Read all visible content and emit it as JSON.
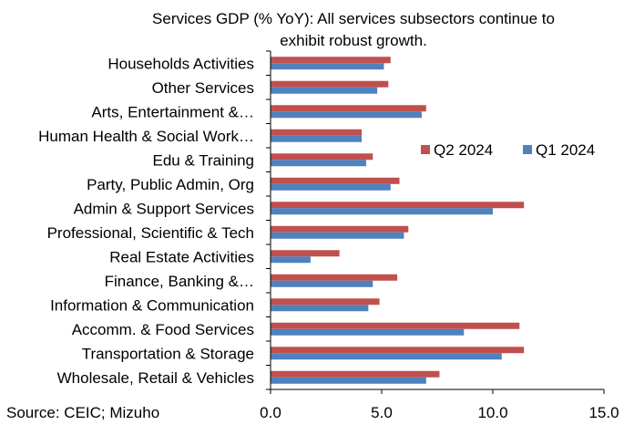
{
  "colors": {
    "q2": "#C0504D",
    "q1": "#4F81BD",
    "axis": "#000000"
  },
  "source": "Source: CEIC; Mizuho",
  "chart_data": {
    "type": "bar",
    "orientation": "horizontal",
    "title_lines": [
      "Services GDP (% YoY): All services subsectors continue to",
      "exhibit robust growth."
    ],
    "categories": [
      "Households Activities",
      "Other Services",
      "Arts, Entertainment &…",
      "Human Health & Social Work…",
      "Edu & Training",
      "Party, Public Admin, Org",
      "Admin & Support Services",
      "Professional, Scientific & Tech",
      "Real Estate Activities",
      "Finance, Banking &…",
      "Information & Communication",
      "Accomm. & Food Services",
      "Transportation & Storage",
      "Wholesale, Retail & Vehicles"
    ],
    "series": [
      {
        "name": "Q2 2024",
        "color": "#C0504D",
        "values": [
          5.4,
          5.3,
          7.0,
          4.1,
          4.6,
          5.8,
          11.4,
          6.2,
          3.1,
          5.7,
          4.9,
          11.2,
          11.4,
          7.6
        ]
      },
      {
        "name": "Q1 2024",
        "color": "#4F81BD",
        "values": [
          5.1,
          4.8,
          6.8,
          4.1,
          4.3,
          5.4,
          10.0,
          6.0,
          1.8,
          4.6,
          4.4,
          8.7,
          10.4,
          7.0
        ]
      }
    ],
    "xlim": [
      0,
      15
    ],
    "xticks": [
      "0.0",
      "5.0",
      "10.0",
      "15.0"
    ],
    "xtick_values": [
      0,
      5,
      10,
      15
    ],
    "xlabel": "",
    "ylabel": "",
    "grid": false,
    "legend_position": "right-middle"
  }
}
